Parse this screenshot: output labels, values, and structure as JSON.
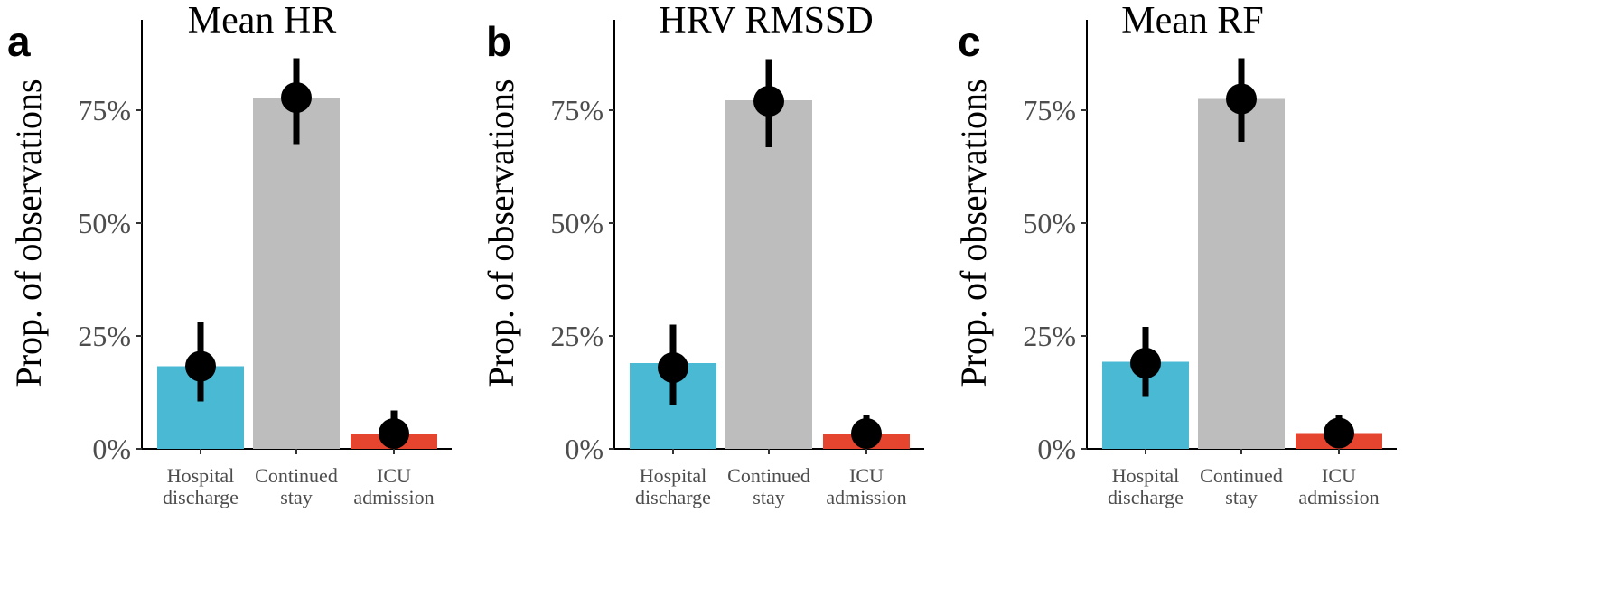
{
  "chart_data": [
    {
      "type": "bar",
      "panel_label": "a",
      "title": "Mean HR",
      "ylabel": "Prop. of observations",
      "xlabel": "",
      "ylim": [
        0,
        0.95
      ],
      "yticks": [
        0,
        0.25,
        0.5,
        0.75
      ],
      "ytick_labels": [
        "0%",
        "25%",
        "50%",
        "75%"
      ],
      "categories": [
        [
          "Hospital",
          "discharge"
        ],
        [
          "Continued",
          "stay"
        ],
        [
          "ICU",
          "admission"
        ]
      ],
      "values": [
        0.183,
        0.778,
        0.034
      ],
      "points": [
        0.183,
        0.778,
        0.034
      ],
      "ci_low": [
        0.105,
        0.675,
        0.005
      ],
      "ci_high": [
        0.28,
        0.865,
        0.085
      ],
      "grid": false,
      "legend": "none"
    },
    {
      "type": "bar",
      "panel_label": "b",
      "title": "HRV RMSSD",
      "ylabel": "Prop. of observations",
      "xlabel": "",
      "ylim": [
        0,
        0.95
      ],
      "yticks": [
        0,
        0.25,
        0.5,
        0.75
      ],
      "ytick_labels": [
        "0%",
        "25%",
        "50%",
        "75%"
      ],
      "categories": [
        [
          "Hospital",
          "discharge"
        ],
        [
          "Continued",
          "stay"
        ],
        [
          "ICU",
          "admission"
        ]
      ],
      "values": [
        0.19,
        0.772,
        0.034
      ],
      "points": [
        0.18,
        0.77,
        0.034
      ],
      "ci_low": [
        0.098,
        0.668,
        0.005
      ],
      "ci_high": [
        0.275,
        0.863,
        0.075
      ],
      "grid": false,
      "legend": "none"
    },
    {
      "type": "bar",
      "panel_label": "c",
      "title": "Mean RF",
      "ylabel": "Prop. of observations",
      "xlabel": "",
      "ylim": [
        0,
        0.95
      ],
      "yticks": [
        0,
        0.25,
        0.5,
        0.75
      ],
      "ytick_labels": [
        "0%",
        "25%",
        "50%",
        "75%"
      ],
      "categories": [
        [
          "Hospital",
          "discharge"
        ],
        [
          "Continued",
          "stay"
        ],
        [
          "ICU",
          "admission"
        ]
      ],
      "values": [
        0.193,
        0.775,
        0.035
      ],
      "points": [
        0.19,
        0.775,
        0.035
      ],
      "ci_low": [
        0.115,
        0.68,
        0.005
      ],
      "ci_high": [
        0.27,
        0.865,
        0.075
      ],
      "grid": false,
      "legend": "none"
    }
  ],
  "colors": {
    "hospital_discharge": "#4ab9d4",
    "continued_stay": "#bdbdbd",
    "icu_admission": "#e5452f",
    "point": "#000000",
    "axis": "#000000"
  }
}
